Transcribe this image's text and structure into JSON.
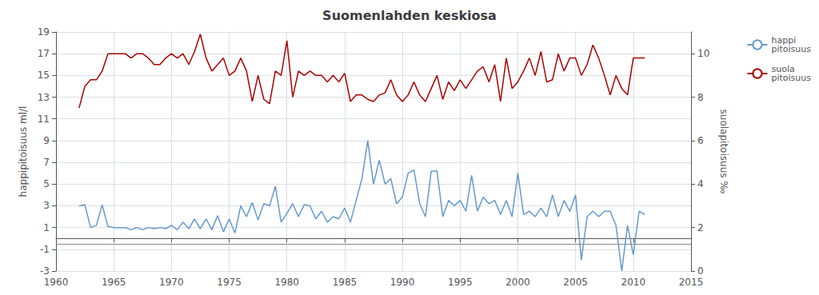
{
  "chart_data": {
    "type": "line",
    "title": "Suomenlahden keskiosa",
    "ylabel": "happipitoisuus ml/l",
    "y2label": "suolapitoisuus ‰",
    "xlim": [
      1960,
      2015
    ],
    "xticks": [
      1960,
      1965,
      1970,
      1975,
      1980,
      1985,
      1990,
      1995,
      2000,
      2005,
      2010,
      2015
    ],
    "ylim": [
      -3,
      19
    ],
    "yticks": [
      -3,
      -1,
      1,
      3,
      5,
      7,
      9,
      11,
      13,
      15,
      17,
      19
    ],
    "y2lim": [
      0,
      11
    ],
    "y2ticks": [
      0,
      2,
      4,
      6,
      8,
      10
    ],
    "grid": true,
    "legend": "upper right",
    "hline": -0.5,
    "x": [
      1962.0,
      1962.5,
      1963.0,
      1963.5,
      1964.0,
      1964.5,
      1965.0,
      1965.5,
      1966.0,
      1966.5,
      1967.0,
      1967.5,
      1968.0,
      1968.5,
      1969.0,
      1969.5,
      1970.0,
      1970.5,
      1971.0,
      1971.5,
      1972.0,
      1972.5,
      1973.0,
      1973.5,
      1974.0,
      1974.5,
      1975.0,
      1975.5,
      1976.0,
      1976.5,
      1977.0,
      1977.5,
      1978.0,
      1978.5,
      1979.0,
      1979.5,
      1980.0,
      1980.5,
      1981.0,
      1981.5,
      1982.0,
      1982.5,
      1983.0,
      1983.5,
      1984.0,
      1984.5,
      1985.0,
      1985.5,
      1986.0,
      1986.5,
      1987.0,
      1987.5,
      1988.0,
      1988.5,
      1989.0,
      1989.5,
      1990.0,
      1990.5,
      1991.0,
      1991.5,
      1992.0,
      1992.5,
      1993.0,
      1993.5,
      1994.0,
      1994.5,
      1995.0,
      1995.5,
      1996.0,
      1996.5,
      1997.0,
      1997.5,
      1998.0,
      1998.5,
      1999.0,
      1999.5,
      2000.0,
      2000.5,
      2001.0,
      2001.5,
      2002.0,
      2002.5,
      2003.0,
      2003.5,
      2004.0,
      2004.5,
      2005.0,
      2005.5,
      2006.0,
      2006.5,
      2007.0,
      2007.5,
      2008.0,
      2008.5,
      2009.0,
      2009.5,
      2010.0,
      2010.5,
      2011.0
    ],
    "series": [
      {
        "name": "happi\npitoisuus",
        "color": "#6699cc",
        "values": [
          3.0,
          3.1,
          1.0,
          1.2,
          3.1,
          1.1,
          1.0,
          1.0,
          1.0,
          0.8,
          1.0,
          0.8,
          1.0,
          0.9,
          1.0,
          0.9,
          1.2,
          0.8,
          1.5,
          0.9,
          1.8,
          0.9,
          1.8,
          0.8,
          2.1,
          0.6,
          1.8,
          0.5,
          3.0,
          2.0,
          3.3,
          1.7,
          3.2,
          3.0,
          4.8,
          1.5,
          2.3,
          3.2,
          2.0,
          3.1,
          3.0,
          1.8,
          2.5,
          1.5,
          2.0,
          1.8,
          2.8,
          1.5,
          3.5,
          5.5,
          9.0,
          5.0,
          7.2,
          5.0,
          5.5,
          3.2,
          3.8,
          6.0,
          6.3,
          3.2,
          2.0,
          6.2,
          6.2,
          2.0,
          3.5,
          3.0,
          3.5,
          2.5,
          5.8,
          2.5,
          3.8,
          3.2,
          3.5,
          2.2,
          3.5,
          2.0,
          6.0,
          2.2,
          2.5,
          2.0,
          2.8,
          2.0,
          4.0,
          2.0,
          3.5,
          2.5,
          4.0,
          -2.0,
          2.0,
          2.5,
          2.0,
          2.5,
          2.5,
          1.2,
          -3.0,
          1.2,
          -1.5,
          2.5,
          2.2
        ]
      },
      {
        "name": "suola\npitoisuus",
        "color": "#aa0000",
        "axis": "y2",
        "values": [
          7.5,
          8.5,
          8.8,
          8.8,
          9.2,
          10.0,
          10.0,
          10.0,
          10.0,
          9.8,
          10.0,
          10.0,
          9.8,
          9.5,
          9.5,
          9.8,
          10.0,
          9.8,
          10.0,
          9.5,
          10.1,
          10.9,
          9.8,
          9.2,
          9.5,
          9.8,
          9.0,
          9.2,
          9.8,
          9.2,
          7.8,
          9.0,
          7.9,
          7.7,
          9.2,
          9.0,
          10.6,
          8.0,
          9.2,
          9.0,
          9.2,
          9.0,
          9.0,
          8.7,
          9.0,
          8.7,
          9.1,
          7.8,
          8.1,
          8.1,
          7.9,
          7.8,
          8.1,
          8.2,
          8.8,
          8.1,
          7.8,
          8.1,
          8.7,
          8.1,
          7.8,
          8.4,
          9.0,
          7.9,
          8.7,
          8.3,
          8.8,
          8.4,
          8.8,
          9.2,
          9.4,
          8.7,
          9.5,
          7.8,
          9.8,
          8.4,
          8.7,
          9.2,
          9.8,
          9.0,
          10.1,
          8.7,
          8.8,
          10.0,
          9.2,
          9.8,
          9.8,
          9.0,
          9.5,
          10.4,
          9.8,
          9.0,
          8.1,
          9.0,
          8.4,
          8.1,
          9.8,
          9.8,
          9.8
        ]
      }
    ]
  }
}
